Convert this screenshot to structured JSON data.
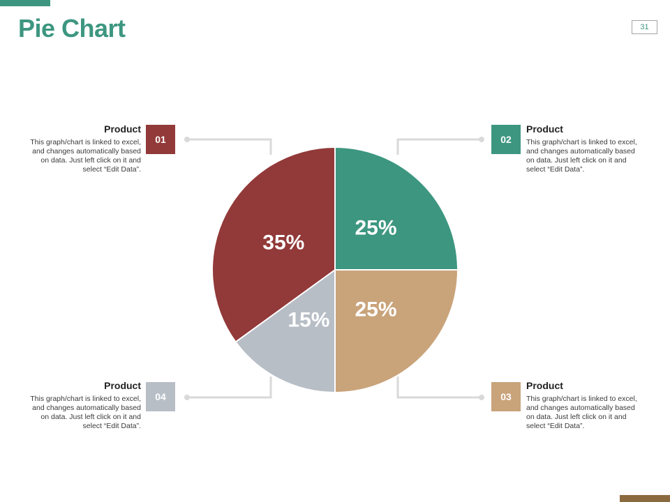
{
  "page": {
    "title": "Pie Chart",
    "page_number": "31"
  },
  "colors": {
    "accent": "#3d9680",
    "brown": "#8c6a3f"
  },
  "items": [
    {
      "number": "01",
      "heading": "Product",
      "desc_lines": [
        "This graph/chart is linked to excel,",
        "and changes automatically based",
        "on data. Just left click on it and",
        "select “Edit Data”."
      ],
      "color": "#923939"
    },
    {
      "number": "02",
      "heading": "Product",
      "desc_lines": [
        "This graph/chart is linked to excel,",
        "and changes automatically based",
        "on data. Just left click on it and",
        "select “Edit Data”."
      ],
      "color": "#3d9680"
    },
    {
      "number": "03",
      "heading": "Product",
      "desc_lines": [
        "This graph/chart is linked to excel,",
        "and changes automatically based",
        "on data. Just left click on it and",
        "select “Edit Data”."
      ],
      "color": "#c9a37a"
    },
    {
      "number": "04",
      "heading": "Product",
      "desc_lines": [
        "This graph/chart is linked to excel,",
        "and changes automatically based",
        "on data. Just left click on it and",
        "select “Edit Data”."
      ],
      "color": "#b8bec6"
    }
  ],
  "chart_data": {
    "type": "pie",
    "title": "",
    "slices": [
      {
        "label": "25%",
        "value": 25,
        "color": "#3d9680"
      },
      {
        "label": "25%",
        "value": 25,
        "color": "#c9a37a"
      },
      {
        "label": "15%",
        "value": 15,
        "color": "#b8bec6"
      },
      {
        "label": "35%",
        "value": 35,
        "color": "#923939"
      }
    ],
    "start_angle_deg": 0,
    "direction": "clockwise"
  }
}
